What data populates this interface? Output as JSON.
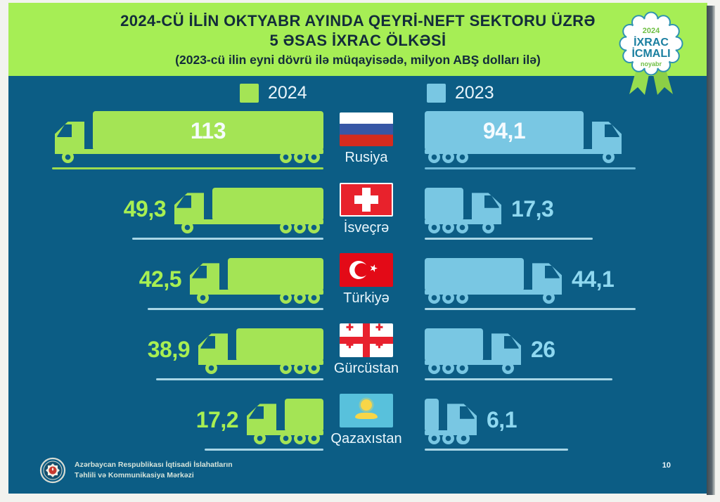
{
  "header": {
    "title_line1": "2024-CÜ İLİN OKTYABR AYINDA QEYRİ-NEFT SEKTORU ÜZRƏ",
    "title_line2": "5 ƏSAS İXRAC ÖLKƏSİ",
    "subtitle": "(2023-cü ilin eyni dövrü ilə müqayisədə, milyon ABŞ dolları ilə)"
  },
  "badge": {
    "year": "2024",
    "line1": "İXRAC",
    "line2": "İCMALI",
    "month": "noyabr"
  },
  "legend": [
    {
      "label": "2024",
      "color": "#a4e455"
    },
    {
      "label": "2023",
      "color": "#79c7e3"
    }
  ],
  "colors": {
    "background": "#0c5d85",
    "header_green": "#a6ee55",
    "truck_green": "#a4e455",
    "truck_blue": "#79c7e3",
    "title_text": "#132c3b"
  },
  "rows": [
    {
      "country": "Rusiya",
      "flag": "russia",
      "value_2024": "113",
      "value_2023": "94,1",
      "num_2024": 113,
      "num_2023": 94.1,
      "truck_style": "semi"
    },
    {
      "country": "İsveçrə",
      "flag": "switzerland",
      "value_2024": "49,3",
      "value_2023": "17,3",
      "num_2024": 49.3,
      "num_2023": 17.3,
      "truck_style": "box"
    },
    {
      "country": "Türkiyə",
      "flag": "turkey",
      "value_2024": "42,5",
      "value_2023": "44,1",
      "num_2024": 42.5,
      "num_2023": 44.1,
      "truck_style": "box"
    },
    {
      "country": "Gürcüstan",
      "flag": "georgia",
      "value_2024": "38,9",
      "value_2023": "26",
      "num_2024": 38.9,
      "num_2023": 26,
      "truck_style": "box"
    },
    {
      "country": "Qazaxıstan",
      "flag": "kazakhstan",
      "value_2024": "17,2",
      "value_2023": "6,1",
      "num_2024": 17.2,
      "num_2023": 6.1,
      "truck_style": "box"
    }
  ],
  "footer": {
    "org_line1": "Azərbaycan Respublikası İqtisadi İslahatların",
    "org_line2": "Təhlili və Kommunikasiya Mərkəzi",
    "page_number": "10"
  },
  "chart_data": {
    "type": "bar",
    "subtype": "pictogram-horizontal-trucks",
    "title": "2024-cü ilin oktyabr ayında qeyri-neft sektoru üzrə 5 əsas ixrac ölkəsi",
    "subtitle": "(2023-cü ilin eyni dövrü ilə müqayisədə, milyon ABŞ dolları ilə)",
    "unit": "milyon ABŞ dolları",
    "categories": [
      "Rusiya",
      "İsveçrə",
      "Türkiyə",
      "Gürcüstan",
      "Qazaxıstan"
    ],
    "series": [
      {
        "name": "2024",
        "color": "#a4e455",
        "values": [
          113,
          49.3,
          42.5,
          38.9,
          17.2
        ]
      },
      {
        "name": "2023",
        "color": "#79c7e3",
        "values": [
          94.1,
          17.3,
          44.1,
          26,
          6.1
        ]
      }
    ],
    "legend_position": "top"
  }
}
